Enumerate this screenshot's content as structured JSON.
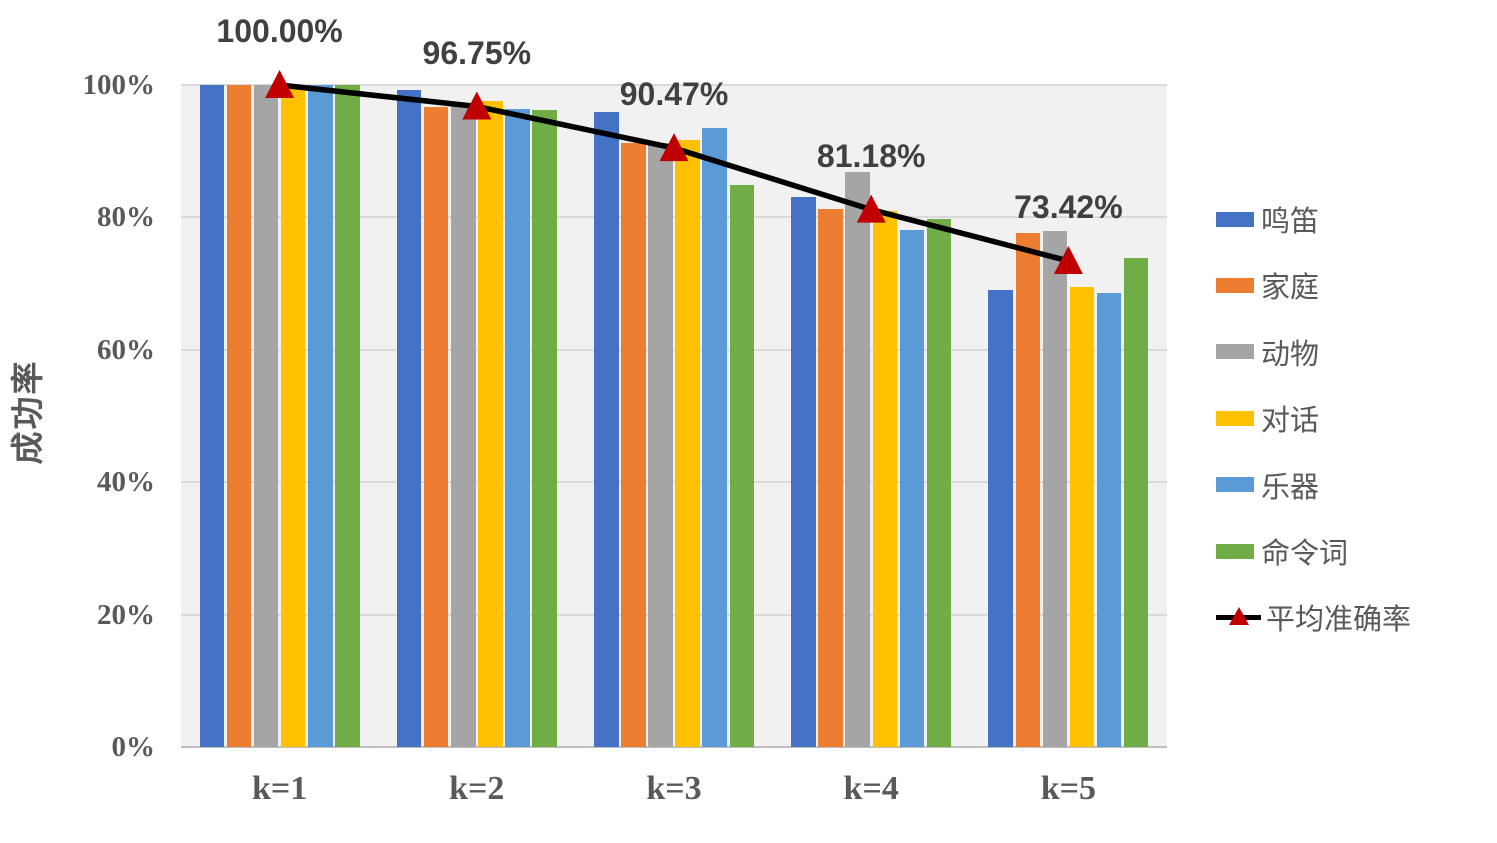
{
  "chart_data": {
    "type": "bar",
    "subtype": "grouped-bars-with-average-line",
    "title": "",
    "xlabel": "",
    "ylabel": "成功率",
    "categories": [
      "k=1",
      "k=2",
      "k=3",
      "k=4",
      "k=5"
    ],
    "series": [
      {
        "name": "鸣笛",
        "color": "#4472C4",
        "values": [
          100,
          99.2,
          95.9,
          83.1,
          69.1
        ]
      },
      {
        "name": "家庭",
        "color": "#ED7D31",
        "values": [
          100,
          96.7,
          91.3,
          81.3,
          77.7
        ]
      },
      {
        "name": "动物",
        "color": "#A5A5A5",
        "values": [
          100,
          96.8,
          91.2,
          86.9,
          78.0
        ]
      },
      {
        "name": "对话",
        "color": "#FFC000",
        "values": [
          100,
          97.6,
          91.7,
          81.0,
          69.5
        ]
      },
      {
        "name": "乐器",
        "color": "#5B9BD5",
        "values": [
          100,
          96.4,
          93.5,
          78.1,
          68.6
        ]
      },
      {
        "name": "命令词",
        "color": "#70AD47",
        "values": [
          100,
          96.2,
          84.9,
          79.8,
          73.9
        ]
      }
    ],
    "line_series": {
      "name": "平均准确率",
      "line_color": "#000000",
      "marker": "triangle",
      "marker_color": "#C00000",
      "values": [
        100.0,
        96.75,
        90.47,
        81.18,
        73.42
      ],
      "data_labels": [
        "100.00%",
        "96.75%",
        "90.47%",
        "81.18%",
        "73.42%"
      ]
    },
    "yticks": [
      {
        "value": 100,
        "label": "100%"
      },
      {
        "value": 80,
        "label": "80%"
      },
      {
        "value": 60,
        "label": "60%"
      },
      {
        "value": 40,
        "label": "40%"
      },
      {
        "value": 20,
        "label": "20%"
      },
      {
        "value": 0,
        "label": "0%"
      }
    ],
    "ylim": [
      0,
      100
    ],
    "grid": true,
    "legend_position": "right",
    "colors": {
      "plot_bg": "#F1F1F1",
      "gridline": "#DADADA",
      "axis_line": "#BFBFBF",
      "axis_text": "#595959",
      "data_label_text": "#404040",
      "legend_text": "#595959"
    }
  }
}
